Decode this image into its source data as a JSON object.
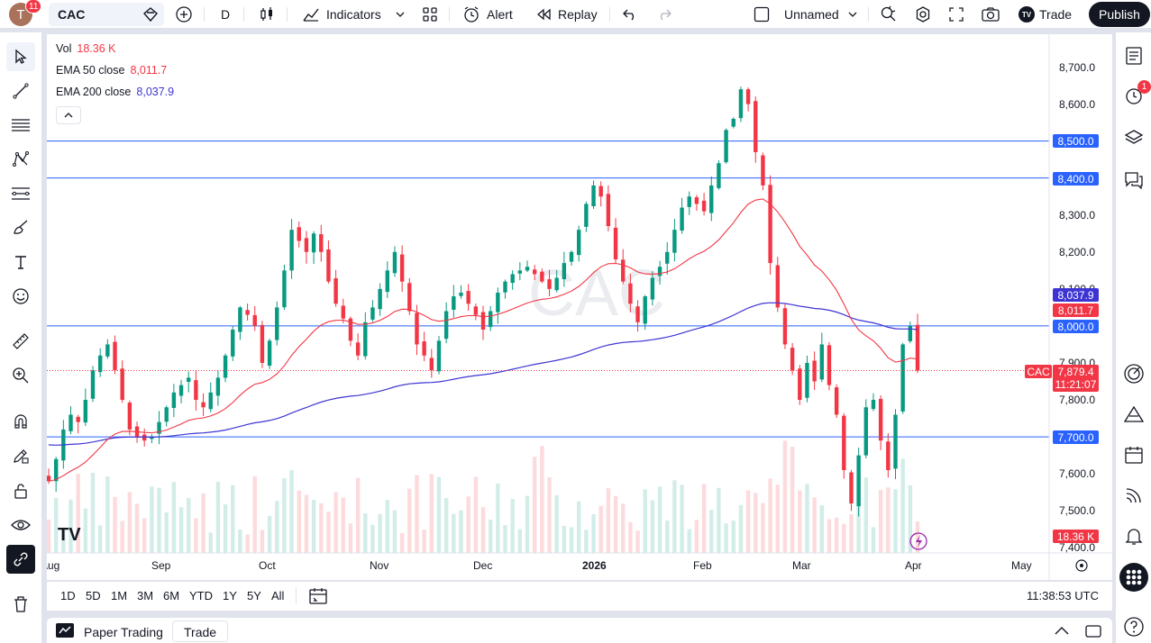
{
  "topbar": {
    "avatar_letter": "T",
    "notifications": "11",
    "symbol": "CAC",
    "interval": "D",
    "indicators_label": "Indicators",
    "alert_label": "Alert",
    "replay_label": "Replay",
    "layout_name": "Unnamed",
    "trade_label": "Trade",
    "trade_logo_text": "TV",
    "publish_label": "Publish"
  },
  "legend": {
    "vol_label": "Vol",
    "vol_value": "18.36 K",
    "ema50_label": "EMA 50 close",
    "ema50_value": "8,011.7",
    "ema200_label": "EMA 200 close",
    "ema200_value": "8,037.9"
  },
  "watermark": "CAC",
  "logo_text": "TV",
  "price_tags": {
    "level_8500": "8,500.0",
    "level_8400": "8,400.0",
    "ema200": "8,037.9",
    "ema50": "8,011.7",
    "level_8000": "8,000.0",
    "symbol": "CAC",
    "last_price": "7,879.4",
    "countdown": "11:21:07",
    "level_7700": "7,700.0",
    "volume": "18.36 K"
  },
  "y_axis_labels": [
    "8,700.0",
    "8,600.0",
    "8,500.0",
    "8,400.0",
    "8,300.0",
    "8,200.0",
    "8,100.0",
    "8,000.0",
    "7,900.0",
    "7,800.0",
    "7,700.0",
    "7,600.0",
    "7,500.0",
    "7,400.0"
  ],
  "x_axis_labels": [
    "Aug",
    "Sep",
    "Oct",
    "Nov",
    "Dec",
    "2026",
    "Feb",
    "Mar",
    "Apr",
    "May"
  ],
  "timeframes": [
    "1D",
    "5D",
    "1M",
    "3M",
    "6M",
    "YTD",
    "1Y",
    "5Y",
    "All"
  ],
  "clock": "11:38:53 UTC",
  "bottom": {
    "paper_trading": "Paper Trading",
    "trade": "Trade"
  },
  "right_alert_badge": "1",
  "colors": {
    "up": "#089981",
    "down": "#f23645",
    "ema50": "#f23645",
    "ema200": "#3d34d4",
    "hline": "#2962ff",
    "last": "#f23645"
  },
  "chart_data": {
    "type": "candlestick",
    "symbol": "CAC",
    "interval": "D",
    "x_ticks": [
      "Aug",
      "Sep",
      "Oct",
      "Nov",
      "Dec",
      "2026",
      "Feb",
      "Mar",
      "Apr",
      "May"
    ],
    "ylim": [
      7400,
      8750
    ],
    "y_ticks": [
      8700,
      8600,
      8500,
      8400,
      8300,
      8200,
      8100,
      8000,
      7900,
      7800,
      7700,
      7600,
      7500,
      7400
    ],
    "horizontal_lines": [
      8500,
      8400,
      8000,
      7700
    ],
    "last_price": 7879.4,
    "ema50_last": 8011.7,
    "ema200_last": 8037.9,
    "volume_last": "18.36 K",
    "close_path": [
      7580,
      7640,
      7720,
      7760,
      7740,
      7800,
      7880,
      7920,
      7950,
      7880,
      7800,
      7720,
      7700,
      7690,
      7700,
      7740,
      7780,
      7820,
      7840,
      7860,
      7800,
      7780,
      7820,
      7860,
      7920,
      7990,
      8050,
      8030,
      8000,
      7900,
      7960,
      8050,
      8150,
      8260,
      8230,
      8200,
      8250,
      8200,
      8120,
      8060,
      8020,
      7960,
      7920,
      8010,
      8050,
      8100,
      8150,
      8200,
      8120,
      8040,
      7950,
      7920,
      7880,
      7960,
      8040,
      8080,
      8090,
      8060,
      8030,
      7990,
      8040,
      8090,
      8120,
      8140,
      8150,
      8160,
      8140,
      8120,
      8100,
      8130,
      8170,
      8200,
      8260,
      8330,
      8380,
      8350,
      8270,
      8180,
      8120,
      8060,
      8010,
      8080,
      8130,
      8160,
      8200,
      8260,
      8320,
      8350,
      8330,
      8310,
      8380,
      8440,
      8530,
      8560,
      8640,
      8600,
      8470,
      8380,
      8170,
      8050,
      7950,
      7880,
      7800,
      7900,
      7850,
      7950,
      7840,
      7760,
      7610,
      7520,
      7650,
      7780,
      7800,
      7690,
      7610,
      7760,
      7950,
      8000,
      7879.4
    ]
  }
}
